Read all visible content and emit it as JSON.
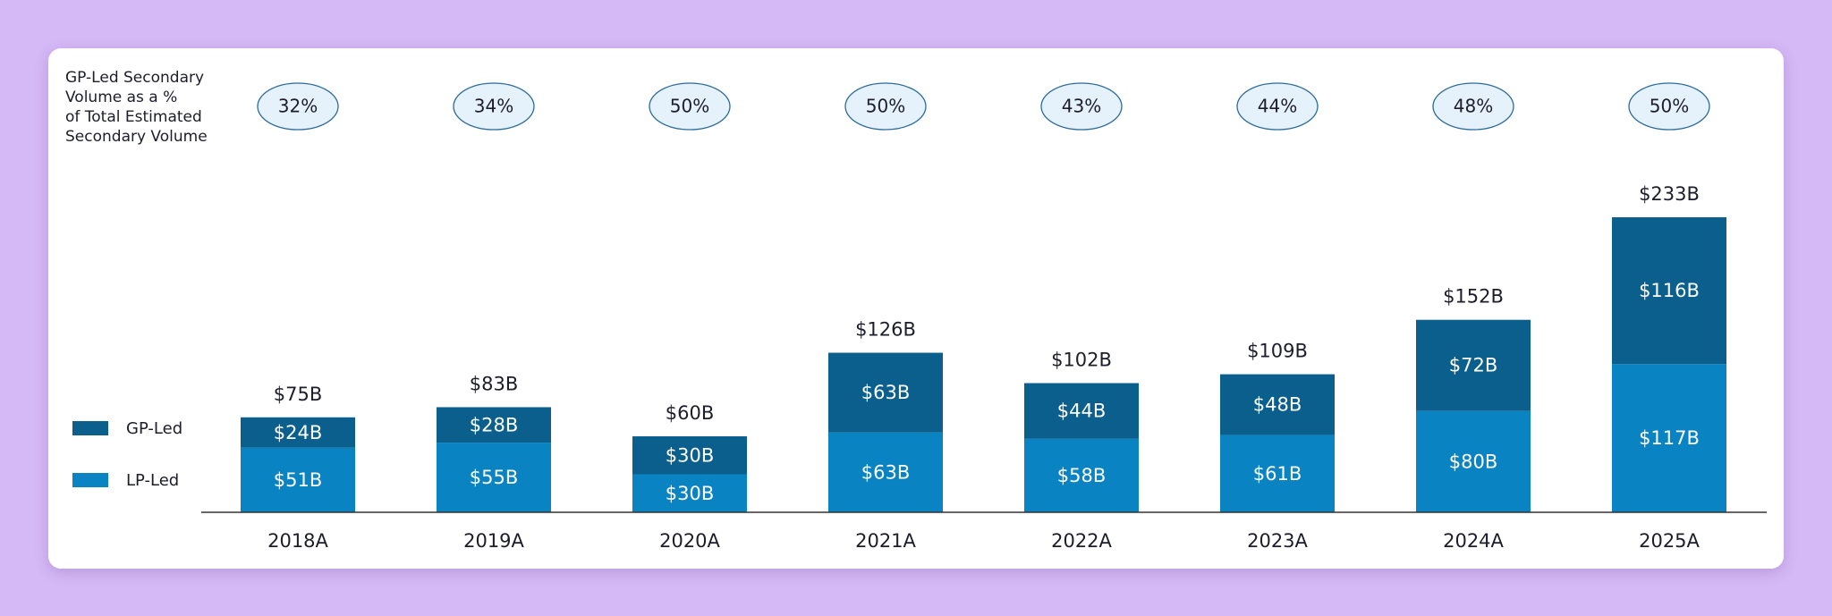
{
  "chart_data": {
    "type": "stacked-bar",
    "subtitle_lines": [
      "GP-Led Secondary",
      "Volume as a %",
      "of Total Estimated",
      "Secondary Volume"
    ],
    "categories": [
      "2018A",
      "2019A",
      "2020A",
      "2021A",
      "2022A",
      "2023A",
      "2024A",
      "2025A"
    ],
    "series": [
      {
        "name": "LP-Led",
        "color": "#0a83c2",
        "values": [
          51,
          55,
          30,
          63,
          58,
          61,
          80,
          117
        ],
        "value_labels": [
          "$51B",
          "$55B",
          "$30B",
          "$63B",
          "$58B",
          "$61B",
          "$80B",
          "$117B"
        ]
      },
      {
        "name": "GP-Led",
        "color": "#0b5f8d",
        "values": [
          24,
          28,
          30,
          63,
          44,
          48,
          72,
          116
        ],
        "value_labels": [
          "$24B",
          "$28B",
          "$30B",
          "$63B",
          "$44B",
          "$48B",
          "$72B",
          "$116B"
        ]
      }
    ],
    "totals": {
      "values": [
        75,
        83,
        60,
        126,
        102,
        109,
        152,
        233
      ],
      "value_labels": [
        "$75B",
        "$83B",
        "$60B",
        "$126B",
        "$102B",
        "$109B",
        "$152B",
        "$233B"
      ]
    },
    "gp_share": {
      "values": [
        32,
        34,
        50,
        50,
        43,
        44,
        48,
        50
      ],
      "value_labels": [
        "32%",
        "34%",
        "50%",
        "50%",
        "43%",
        "44%",
        "48%",
        "50%"
      ]
    },
    "legend": "left"
  }
}
